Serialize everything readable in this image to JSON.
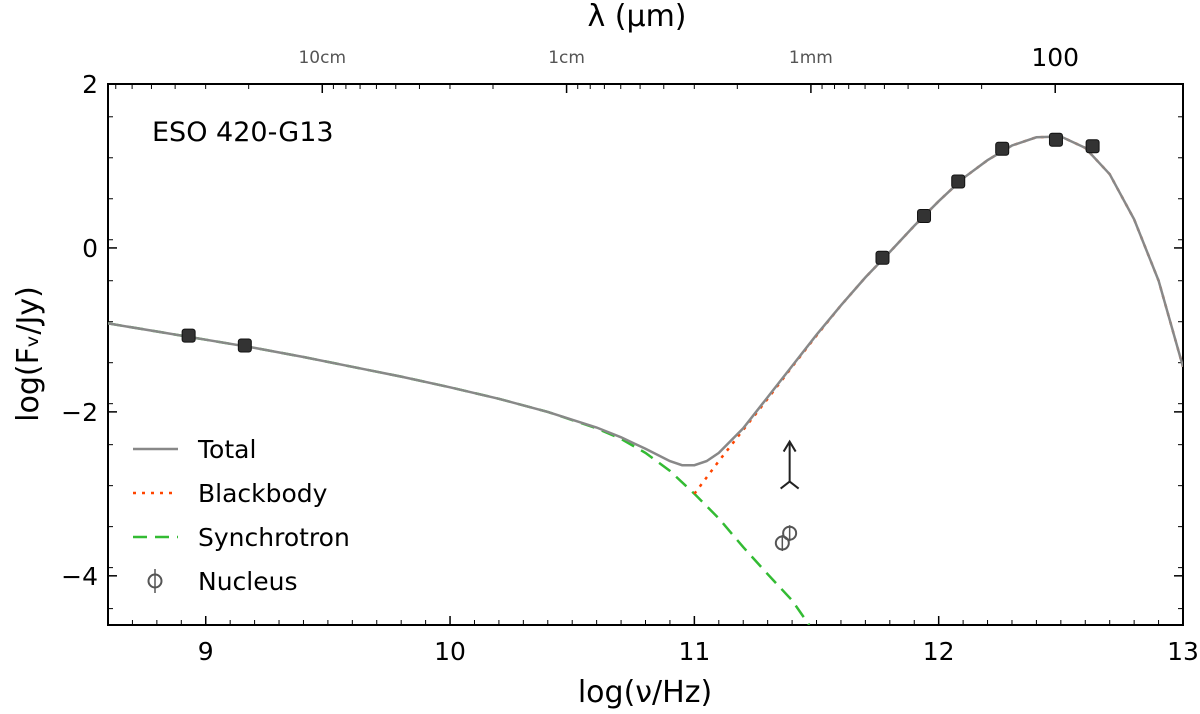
{
  "chart_data": {
    "type": "line",
    "object_label": "ESO 420-G13",
    "xlabel": "log(ν/Hz)",
    "ylabel": "log(Fᵥ/Jy)",
    "top_axis_label": "λ (µm)",
    "xlim": [
      8.6,
      13.0
    ],
    "ylim": [
      -4.6,
      2.0
    ],
    "x_ticks": [
      {
        "value": 9,
        "label": "9"
      },
      {
        "value": 10,
        "label": "10"
      },
      {
        "value": 11,
        "label": "11"
      },
      {
        "value": 12,
        "label": "12"
      },
      {
        "value": 13,
        "label": "13"
      }
    ],
    "y_ticks": [
      {
        "value": 2,
        "label": "2"
      },
      {
        "value": 0,
        "label": "0"
      },
      {
        "value": -2,
        "label": "−2"
      },
      {
        "value": -4,
        "label": "−4"
      }
    ],
    "top_ticks": [
      {
        "value": 9.477,
        "label": "10cm",
        "style": "small"
      },
      {
        "value": 10.477,
        "label": "1cm",
        "style": "small"
      },
      {
        "value": 11.477,
        "label": "1mm",
        "style": "small"
      },
      {
        "value": 12.477,
        "label": "100",
        "style": "large"
      }
    ],
    "series": [
      {
        "name": "Total",
        "color": "#888888",
        "dash": "",
        "x": [
          8.6,
          8.8,
          9.0,
          9.2,
          9.4,
          9.6,
          9.8,
          10.0,
          10.2,
          10.4,
          10.6,
          10.7,
          10.8,
          10.9,
          10.95,
          11.0,
          11.05,
          11.1,
          11.2,
          11.3,
          11.4,
          11.5,
          11.6,
          11.7,
          11.8,
          11.9,
          12.0,
          12.1,
          12.2,
          12.3,
          12.4,
          12.5,
          12.6,
          12.7,
          12.8,
          12.9,
          13.0
        ],
        "y": [
          -0.92,
          -1.02,
          -1.12,
          -1.22,
          -1.33,
          -1.45,
          -1.57,
          -1.7,
          -1.84,
          -2.0,
          -2.19,
          -2.31,
          -2.45,
          -2.6,
          -2.65,
          -2.65,
          -2.6,
          -2.5,
          -2.2,
          -1.82,
          -1.44,
          -1.06,
          -0.7,
          -0.36,
          -0.05,
          0.27,
          0.57,
          0.85,
          1.07,
          1.25,
          1.35,
          1.36,
          1.22,
          0.9,
          0.35,
          -0.4,
          -1.45
        ]
      },
      {
        "name": "Blackbody",
        "color": "#ff4500",
        "dash": "3,6",
        "x": [
          11.0,
          11.1,
          11.2,
          11.3,
          11.4,
          11.5,
          11.6,
          11.7,
          11.8,
          11.9,
          12.0,
          12.1,
          12.2,
          12.3,
          12.4,
          12.5,
          12.6,
          12.7,
          12.8,
          12.9,
          13.0
        ],
        "y": [
          -3.0,
          -2.6,
          -2.22,
          -1.84,
          -1.45,
          -1.07,
          -0.7,
          -0.36,
          -0.05,
          0.27,
          0.57,
          0.85,
          1.07,
          1.25,
          1.35,
          1.36,
          1.22,
          0.9,
          0.35,
          -0.4,
          -1.45
        ]
      },
      {
        "name": "Synchrotron",
        "color": "#33bb33",
        "dash": "14,8",
        "x": [
          8.6,
          8.8,
          9.0,
          9.2,
          9.4,
          9.6,
          9.8,
          10.0,
          10.2,
          10.4,
          10.6,
          10.7,
          10.8,
          10.9,
          11.0,
          11.1,
          11.2,
          11.3,
          11.4,
          11.47
        ],
        "y": [
          -0.92,
          -1.02,
          -1.12,
          -1.22,
          -1.33,
          -1.45,
          -1.57,
          -1.7,
          -1.84,
          -2.0,
          -2.2,
          -2.33,
          -2.5,
          -2.72,
          -3.0,
          -3.3,
          -3.65,
          -3.98,
          -4.3,
          -4.6
        ]
      }
    ],
    "photometry": {
      "name": "Photometry",
      "color": "#333333",
      "x": [
        8.93,
        9.16,
        11.77,
        11.94,
        12.08,
        12.26,
        12.48,
        12.63
      ],
      "y": [
        -1.07,
        -1.19,
        -0.12,
        0.39,
        0.81,
        1.21,
        1.32,
        1.24
      ]
    },
    "nucleus": {
      "name": "Nucleus",
      "color": "#555555",
      "x": [
        11.36,
        11.39
      ],
      "y": [
        -3.6,
        -3.48
      ]
    },
    "nucleus_limit": {
      "x": 11.39,
      "y": -2.85,
      "direction": "up"
    },
    "legend": {
      "position": "lower-left",
      "entries": [
        {
          "label": "Total",
          "kind": "line",
          "color": "#888888",
          "dash": ""
        },
        {
          "label": "Blackbody",
          "kind": "line",
          "color": "#ff4500",
          "dash": "3,6"
        },
        {
          "label": "Synchrotron",
          "kind": "line",
          "color": "#33bb33",
          "dash": "14,8"
        },
        {
          "label": "Nucleus",
          "kind": "marker",
          "color": "#555555",
          "dash": ""
        }
      ]
    }
  }
}
